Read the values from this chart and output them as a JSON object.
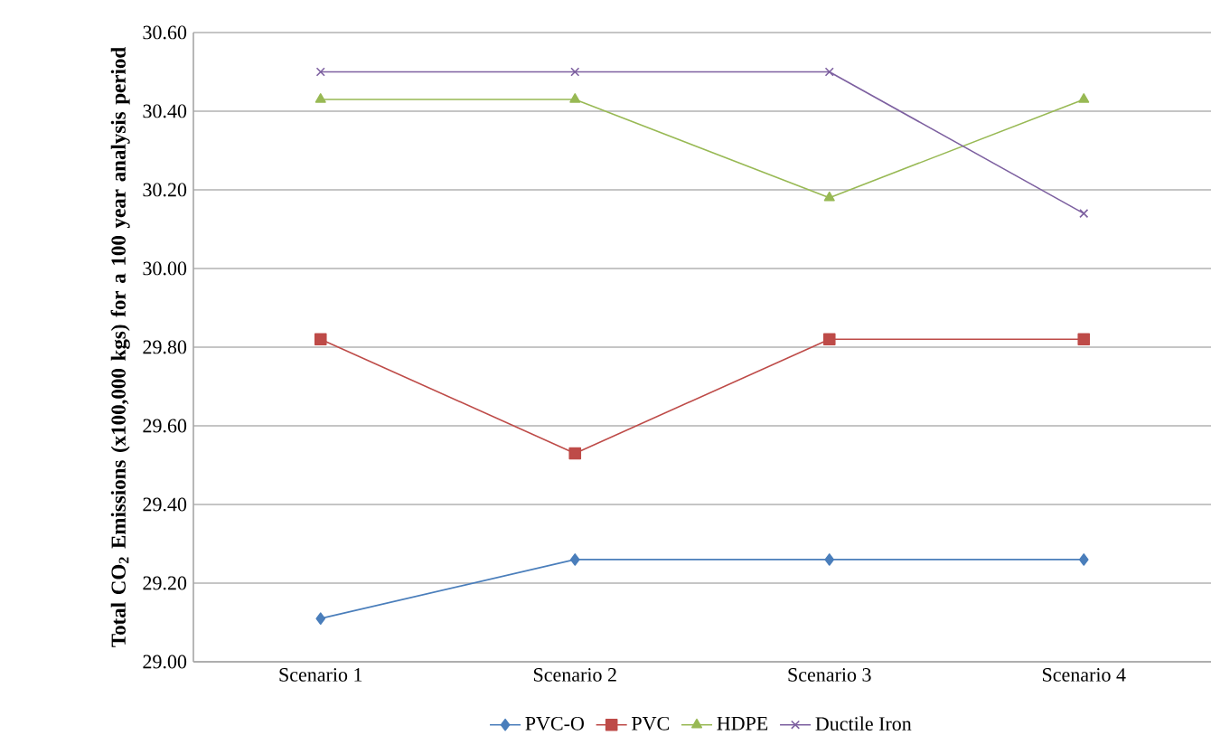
{
  "chart_data": {
    "type": "line",
    "ylabel": "Total CO$_{2}$ Emissions (x100,000 kgs) for a 100 year analysis period",
    "categories": [
      "Scenario 1",
      "Scenario 2",
      "Scenario 3",
      "Scenario 4"
    ],
    "series": [
      {
        "name": "PVC-O",
        "color": "#4a7ebb",
        "marker": "diamond",
        "values": [
          29.11,
          29.26,
          29.26,
          29.26
        ]
      },
      {
        "name": "PVC",
        "color": "#be4b48",
        "marker": "square",
        "values": [
          29.82,
          29.53,
          29.82,
          29.82
        ]
      },
      {
        "name": "HDPE",
        "color": "#98b954",
        "marker": "triangle",
        "values": [
          30.43,
          30.43,
          30.18,
          30.43
        ]
      },
      {
        "name": "Ductile Iron",
        "color": "#7d60a0",
        "marker": "cross",
        "values": [
          30.5,
          30.5,
          30.5,
          30.14
        ]
      }
    ],
    "ylim": [
      29.0,
      30.6
    ],
    "yticks": [
      {
        "value": 29.0,
        "label": "29.00"
      },
      {
        "value": 29.2,
        "label": "29.20"
      },
      {
        "value": 29.4,
        "label": "29.40"
      },
      {
        "value": 29.6,
        "label": "29.60"
      },
      {
        "value": 29.8,
        "label": "29.80"
      },
      {
        "value": 30.0,
        "label": "30.00"
      },
      {
        "value": 30.2,
        "label": "30.20"
      },
      {
        "value": 30.4,
        "label": "30.40"
      },
      {
        "value": 30.6,
        "label": "30.60"
      }
    ],
    "grid": "y",
    "legend": "bottom",
    "line_style": "solid"
  }
}
